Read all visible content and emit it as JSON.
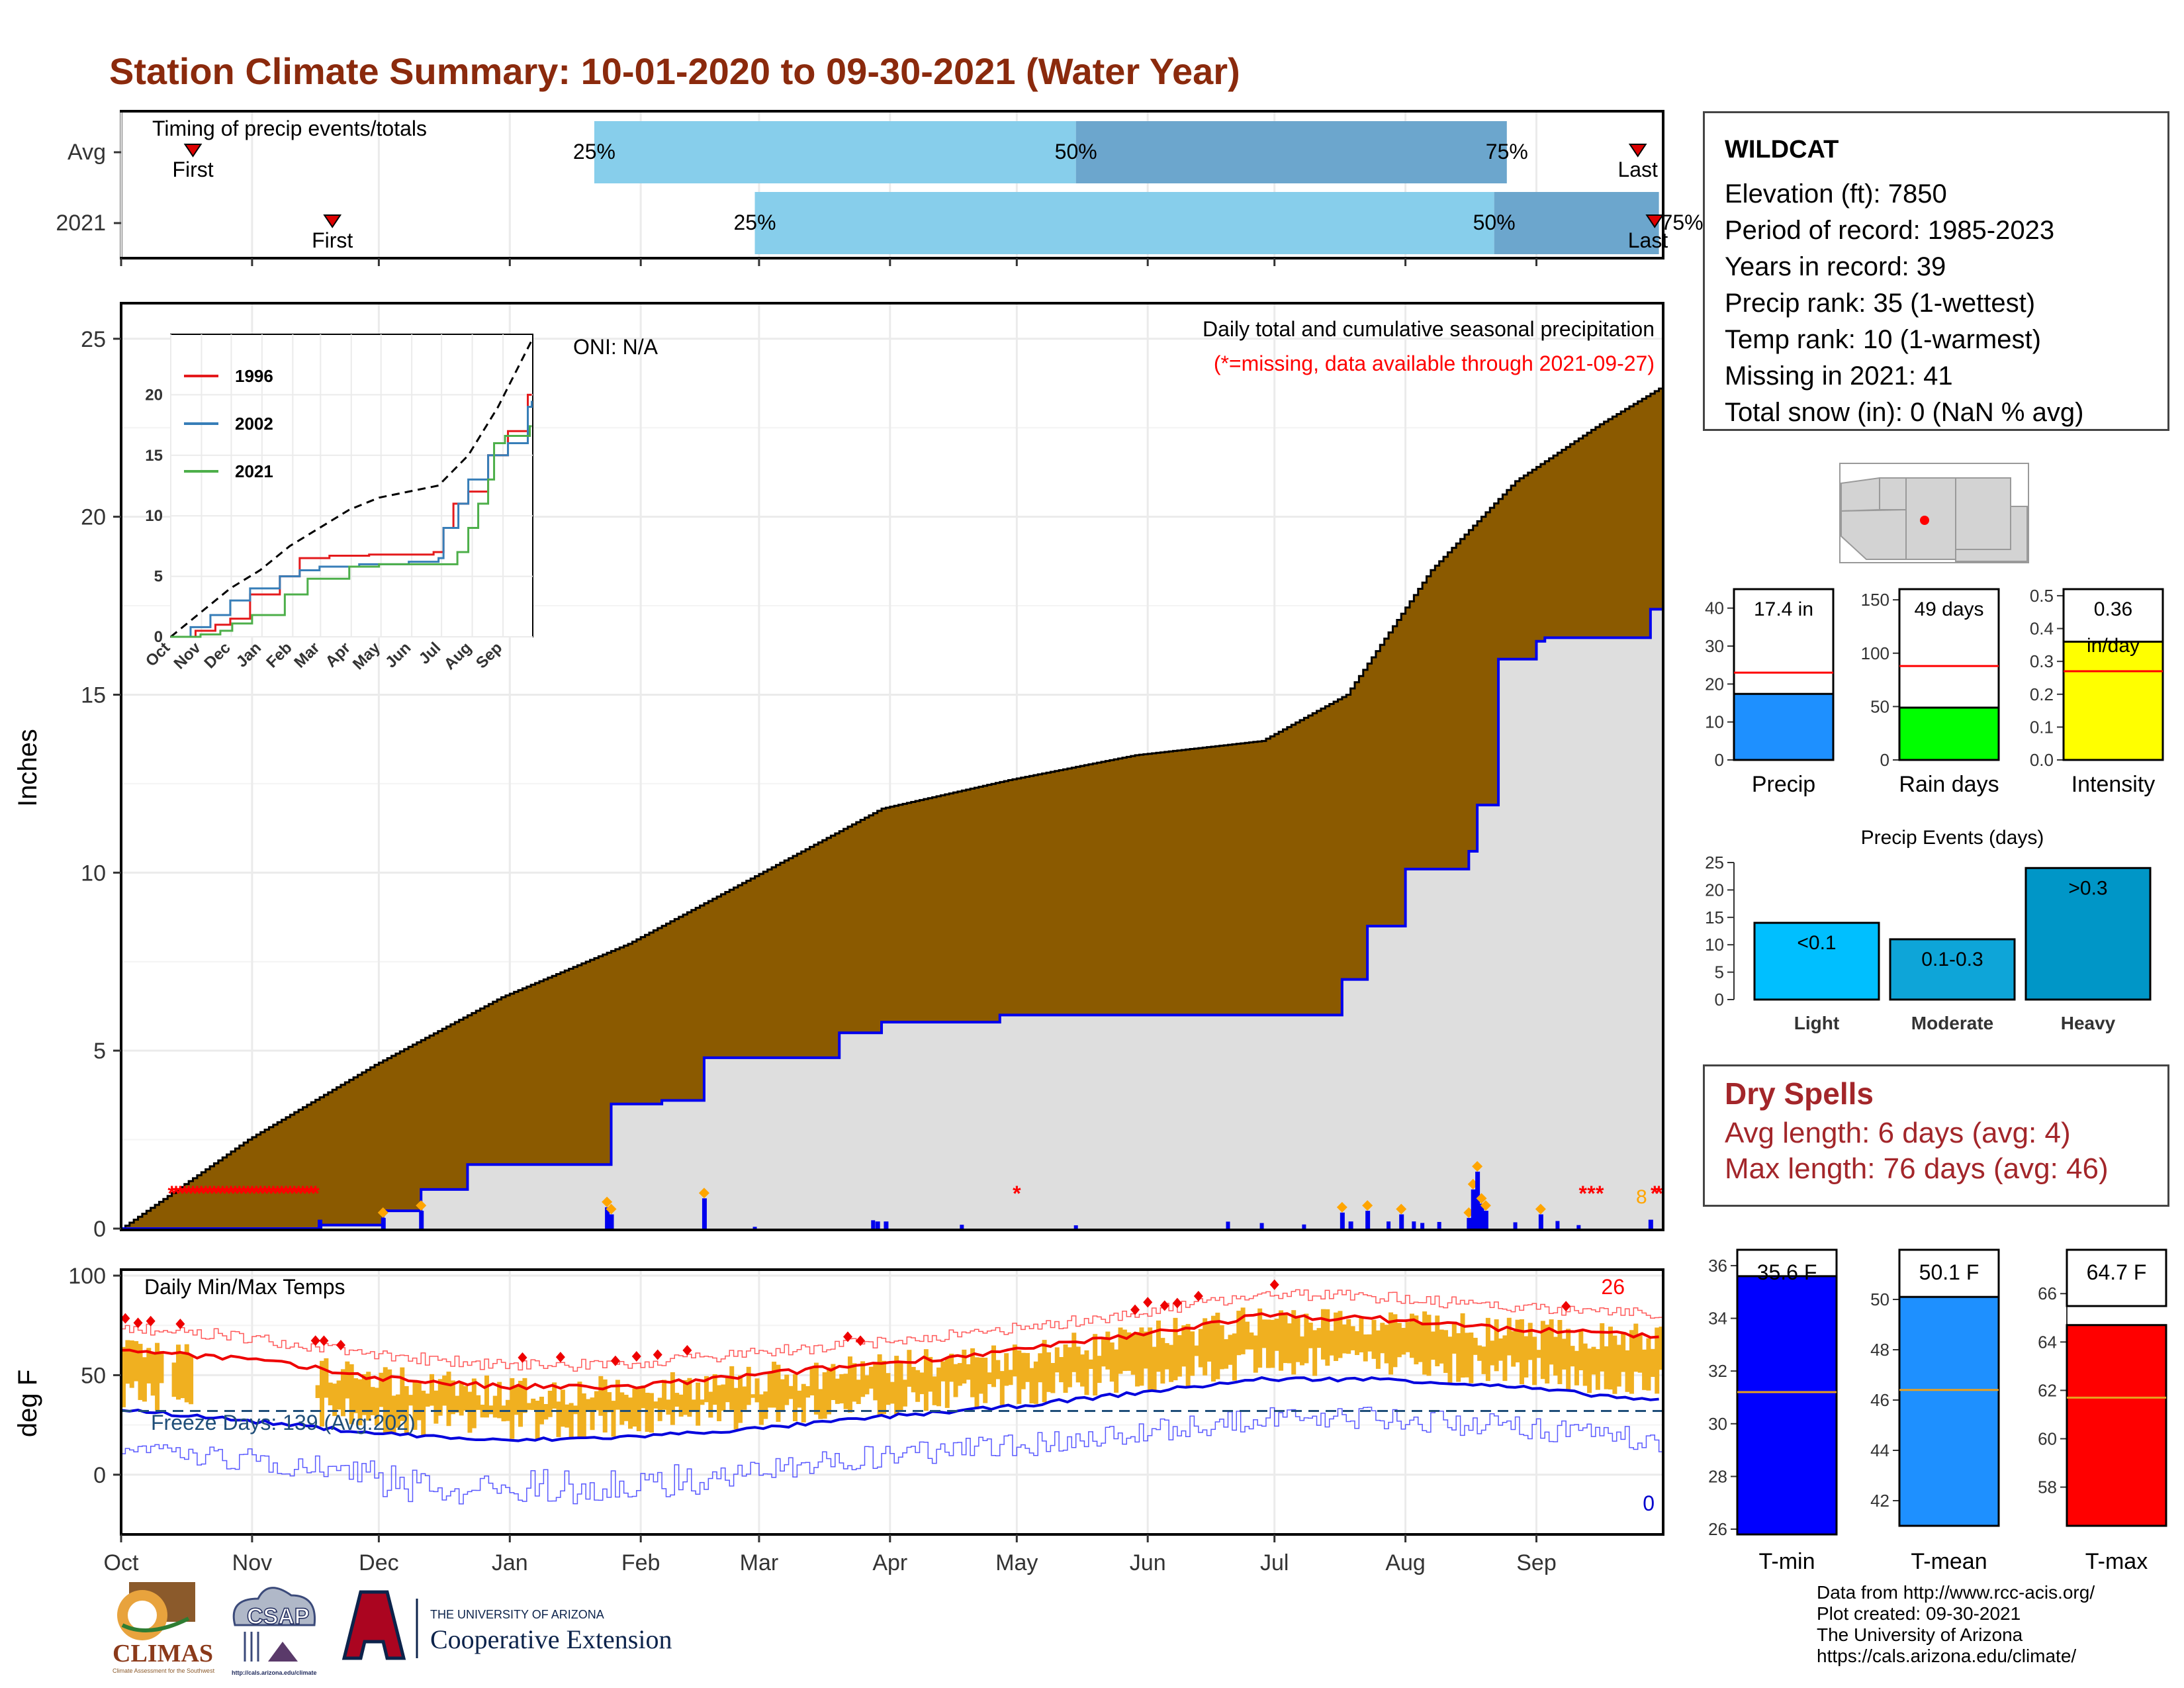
{
  "title": "Station Climate Summary: 10-01-2020 to 09-30-2021 (Water Year)",
  "timing": {
    "label": "Timing of precip events/totals",
    "rows": [
      {
        "name": "Avg",
        "first_day": 17,
        "last_day": 359,
        "p25_day": 112,
        "p50_day": 226,
        "p75_day": 328,
        "first": "First",
        "last": "Last"
      },
      {
        "name": "2021",
        "first_day": 50,
        "last_day": 363,
        "p25_day": 150,
        "p50_day": 325,
        "p75_day": 364,
        "first": "First",
        "last": "Last"
      }
    ],
    "pct_labels": [
      "25%",
      "50%",
      "75%"
    ]
  },
  "precip_panel": {
    "ylabel": "Inches",
    "yticks": [
      0,
      5,
      10,
      15,
      20,
      25
    ],
    "caption": "Daily total and cumulative seasonal precipitation",
    "missing_note": "(*=missing, data available through 2021-09-27)",
    "oni": "ONI: N/A",
    "missing_marker_count": "8",
    "colors": {
      "avg_cum": "#8b5a00",
      "obs_cum": "#dedede",
      "obs_line": "#0000ee",
      "daily": "#0000ee",
      "event": "#ffa500",
      "missing": "#ff0000"
    }
  },
  "inset": {
    "legend": [
      "1996",
      "2002",
      "2021"
    ],
    "colors": [
      "#e41a1c",
      "#377eb8",
      "#4daf4a"
    ],
    "yticks": [
      0,
      5,
      10,
      15,
      20
    ],
    "months": [
      "Oct",
      "Nov",
      "Dec",
      "Jan",
      "Feb",
      "Mar",
      "Apr",
      "May",
      "Jun",
      "Jul",
      "Aug",
      "Sep"
    ]
  },
  "temp_panel": {
    "ylabel": "deg F",
    "label": "Daily Min/Max Temps",
    "freeze": "Freeze Days: 139 (Avg:202)",
    "hot_count": "26",
    "cold_count": "0",
    "yticks": [
      0,
      50,
      100
    ]
  },
  "months": [
    "Oct",
    "Nov",
    "Dec",
    "Jan",
    "Feb",
    "Mar",
    "Apr",
    "May",
    "Jun",
    "Jul",
    "Aug",
    "Sep"
  ],
  "station": {
    "name": "WILDCAT",
    "lines": [
      "Elevation (ft): 7850",
      "Period of record: 1985-2023",
      "Years in record: 39",
      "Precip rank: 35 (1-wettest)",
      "Temp rank: 10 (1-warmest)",
      "Missing in 2021: 41",
      "Total snow (in): 0 (NaN % avg)"
    ]
  },
  "summary_bars": [
    {
      "name": "Precip",
      "value": 17.4,
      "avg": 23,
      "label": "17.4 in",
      "ymax": 45,
      "ticks": [
        "0",
        "10",
        "20",
        "30",
        "40"
      ],
      "color": "#1e90ff"
    },
    {
      "name": "Rain days",
      "value": 49,
      "avg": 88,
      "label": "49 days",
      "ymax": 160,
      "ticks": [
        "0",
        "50",
        "100",
        "150"
      ],
      "color": "#00ff00"
    },
    {
      "name": "Intensity",
      "value": 0.36,
      "avg": 0.27,
      "label": "0.36",
      "sublabel": "in/day",
      "ymax": 0.52,
      "ticks": [
        "0.0",
        "0.1",
        "0.2",
        "0.3",
        "0.4",
        "0.5"
      ],
      "color": "#ffff00"
    }
  ],
  "events": {
    "title": "Precip Events (days)",
    "categories": [
      "Light",
      "Moderate",
      "Heavy"
    ],
    "labels": [
      "<0.1",
      "0.1-0.3",
      ">0.3"
    ],
    "values": [
      14,
      11,
      24
    ],
    "ticks": [
      "0",
      "5",
      "10",
      "15",
      "20",
      "25"
    ],
    "colors": [
      "#00bfff",
      "#0ea5d8",
      "#0096c7"
    ]
  },
  "dry_spells": {
    "title": "Dry Spells",
    "avg": "Avg length: 6 days (avg: 4)",
    "max": "Max length: 76 days (avg: 46)"
  },
  "temp_bars": [
    {
      "name": "T-min",
      "value": 35.6,
      "avg": 31.2,
      "label": "35.6 F",
      "ymin": 25.8,
      "ymax": 36.3,
      "ticks": [
        "26",
        "28",
        "30",
        "32",
        "34",
        "36"
      ],
      "color": "#0000ff"
    },
    {
      "name": "T-mean",
      "value": 50.1,
      "avg": 46.4,
      "label": "50.1 F",
      "ymin": 41.0,
      "ymax": 51.0,
      "ticks": [
        "42",
        "44",
        "46",
        "48",
        "50"
      ],
      "color": "#1e90ff"
    },
    {
      "name": "T-max",
      "value": 64.7,
      "avg": 61.7,
      "label": "64.7 F",
      "ymin": 56.4,
      "ymax": 66.8,
      "ticks": [
        "58",
        "60",
        "62",
        "64",
        "66"
      ],
      "color": "#ff0000"
    }
  ],
  "credits": [
    "Data from http://www.rcc-acis.org/",
    "Plot created: 09-30-2021",
    "The University of Arizona",
    "https://cals.arizona.edu/climate/"
  ],
  "logos": {
    "climas": "CLIMAS",
    "csap": "CSAP",
    "csap_url": "http://cals.arizona.edu/climate",
    "ua_top": "THE UNIVERSITY OF ARIZONA",
    "ua_main": "Cooperative Extension",
    "climas_sub": "Climate Assessment for the Southwest"
  },
  "chart_data": [
    {
      "type": "area",
      "title": "Daily total and cumulative seasonal precipitation",
      "ylabel": "Inches",
      "ylim": [
        0,
        26
      ],
      "x_unit": "day of water year (0 = Oct 1)",
      "avg_cumulative": {
        "x": [
          0,
          30,
          60,
          90,
          120,
          150,
          180,
          210,
          240,
          270,
          290,
          310,
          330,
          350,
          364
        ],
        "y": [
          0,
          2.5,
          4.6,
          6.5,
          8.0,
          9.9,
          11.8,
          12.6,
          13.3,
          13.7,
          15.0,
          18.5,
          21.0,
          22.6,
          23.6
        ]
      },
      "obs_cumulative": {
        "x": [
          0,
          47,
          62,
          71,
          82,
          114,
          116,
          128,
          138,
          170,
          180,
          208,
          240,
          281,
          289,
          295,
          304,
          319,
          321,
          326,
          335,
          337,
          362,
          364
        ],
        "y": [
          0,
          0.1,
          0.5,
          1.1,
          1.8,
          1.8,
          3.5,
          3.6,
          4.8,
          5.5,
          5.8,
          6.0,
          6.0,
          6.0,
          7.0,
          8.5,
          10.1,
          10.6,
          11.9,
          16.0,
          16.5,
          16.6,
          17.4,
          17.4
        ]
      },
      "daily_events": {
        "x": [
          47,
          62,
          71,
          115,
          116,
          138,
          179,
          181,
          289,
          291,
          295,
          303,
          319,
          320,
          321,
          322,
          323,
          336,
          362
        ],
        "y": [
          0.25,
          0.3,
          0.5,
          0.6,
          0.4,
          0.85,
          0.2,
          0.2,
          0.45,
          0.2,
          0.5,
          0.4,
          0.3,
          1.1,
          1.6,
          0.7,
          0.5,
          0.4,
          0.25
        ]
      },
      "missing_days": {
        "x": [
          12,
          13,
          14,
          15,
          16,
          17,
          18,
          19,
          20,
          21,
          22,
          23,
          24,
          25,
          26,
          27,
          28,
          29,
          30,
          31,
          32,
          33,
          34,
          35,
          36,
          37,
          38,
          39,
          40,
          41,
          42,
          43,
          44,
          45,
          46,
          212,
          346,
          348,
          350,
          363,
          364
        ]
      }
    },
    {
      "type": "line",
      "title": "Daily Min/Max Temps",
      "ylabel": "deg F",
      "ylim": [
        -30,
        103
      ],
      "x_unit": "day of water year",
      "avg_max": {
        "x": [
          0,
          30,
          60,
          90,
          120,
          150,
          180,
          210,
          240,
          270,
          300,
          330,
          364
        ],
        "y": [
          63,
          58,
          49,
          44,
          44,
          50,
          56,
          62,
          70,
          80,
          78,
          73,
          70
        ]
      },
      "avg_min": {
        "x": [
          0,
          30,
          60,
          90,
          120,
          150,
          180,
          210,
          240,
          270,
          300,
          330,
          364
        ],
        "y": [
          33,
          27,
          21,
          17,
          19,
          23,
          29,
          34,
          41,
          48,
          48,
          44,
          37
        ]
      },
      "freeze_line": 32
    }
  ]
}
